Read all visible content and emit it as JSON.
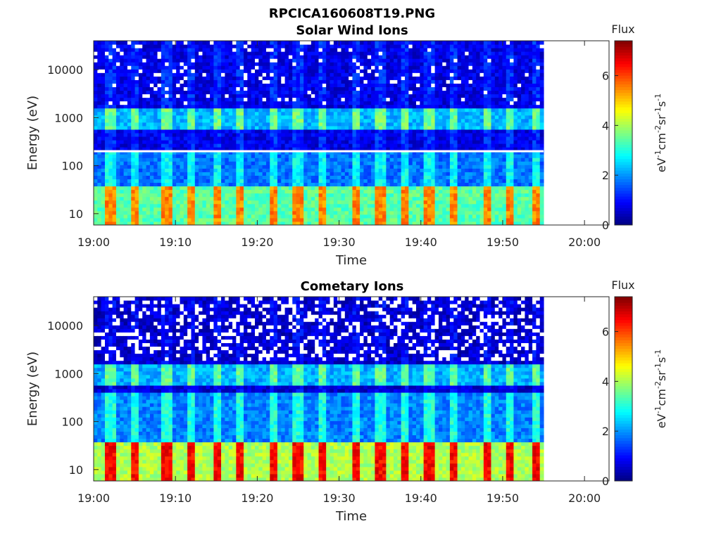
{
  "figure": {
    "title": "RPCICA160608T19.PNG"
  },
  "colorbar": {
    "label": "Flux",
    "units_main": "eV",
    "units_sup1": "-1",
    "units_cm": "cm",
    "units_sup2": "-2",
    "units_sr": "sr",
    "units_sup3": "-1",
    "units_s": "s",
    "units_sup4": "-1",
    "range": [
      0,
      7.4
    ],
    "ticks": [
      "0",
      "2",
      "4",
      "6"
    ],
    "colormap": "jet"
  },
  "chart_data": [
    {
      "type": "heatmap",
      "title": "Solar Wind Ions",
      "xlabel": "Time",
      "ylabel": "Energy (eV)",
      "x_tick_labels": [
        "19:00",
        "19:10",
        "19:20",
        "19:30",
        "19:40",
        "19:50",
        "20:00"
      ],
      "xlim": [
        "19:00",
        "20:03"
      ],
      "data_end_time": "19:55",
      "yscale": "log",
      "y_tick_labels": [
        "10",
        "100",
        "1000",
        "10000"
      ],
      "ylim": [
        5.8,
        40000
      ],
      "white_gap_energy": 200,
      "bands": [
        {
          "energy_range": [
            6,
            40
          ],
          "peak_flux": 5.5
        },
        {
          "energy_range": [
            600,
            1500
          ],
          "peak_flux": 3.6
        },
        {
          "energy_range": [
            40,
            200
          ],
          "peak_flux": 2.8
        },
        {
          "energy_range": [
            2000,
            40000
          ],
          "peak_flux": 1.2
        }
      ],
      "burst_times": [
        "19:02",
        "19:05",
        "19:09",
        "19:12",
        "19:15",
        "19:18",
        "19:22",
        "19:25",
        "19:28",
        "19:32",
        "19:35",
        "19:38",
        "19:41",
        "19:44",
        "19:48",
        "19:51",
        "19:54"
      ]
    },
    {
      "type": "heatmap",
      "title": "Cometary Ions",
      "xlabel": "Time",
      "ylabel": "Energy (eV)",
      "x_tick_labels": [
        "19:00",
        "19:10",
        "19:20",
        "19:30",
        "19:40",
        "19:50",
        "20:00"
      ],
      "xlim": [
        "19:00",
        "20:03"
      ],
      "data_end_time": "19:55",
      "yscale": "log",
      "y_tick_labels": [
        "10",
        "100",
        "1000",
        "10000"
      ],
      "ylim": [
        5.8,
        40000
      ],
      "bands": [
        {
          "energy_range": [
            6,
            40
          ],
          "peak_flux": 6.5
        },
        {
          "energy_range": [
            600,
            1500
          ],
          "peak_flux": 3.5
        },
        {
          "energy_range": [
            40,
            400
          ],
          "peak_flux": 3.0
        },
        {
          "energy_range": [
            2000,
            40000
          ],
          "peak_flux": 0.9
        }
      ],
      "burst_times": [
        "19:02",
        "19:05",
        "19:09",
        "19:12",
        "19:15",
        "19:18",
        "19:22",
        "19:25",
        "19:28",
        "19:32",
        "19:35",
        "19:38",
        "19:41",
        "19:44",
        "19:48",
        "19:51",
        "19:54"
      ]
    }
  ]
}
